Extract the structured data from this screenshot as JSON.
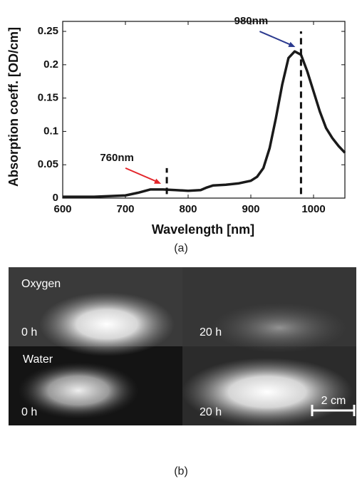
{
  "chart_data": {
    "type": "line",
    "x_label": "Wavelength [nm]",
    "y_label": "Absorption coeff. [OD/cm]",
    "x": [
      600,
      650,
      700,
      720,
      740,
      760,
      780,
      800,
      820,
      830,
      840,
      860,
      880,
      900,
      910,
      920,
      930,
      940,
      950,
      960,
      970,
      980,
      990,
      1000,
      1010,
      1020,
      1030,
      1040,
      1050
    ],
    "series": [
      {
        "color": "#1a1a1a",
        "values": [
          0.002,
          0.002,
          0.004,
          0.008,
          0.013,
          0.013,
          0.012,
          0.011,
          0.012,
          0.016,
          0.019,
          0.02,
          0.022,
          0.026,
          0.032,
          0.045,
          0.075,
          0.12,
          0.17,
          0.21,
          0.22,
          0.215,
          0.19,
          0.16,
          0.13,
          0.105,
          0.09,
          0.078,
          0.068
        ]
      }
    ],
    "xlim": [
      600,
      1050
    ],
    "xticks": [
      600,
      700,
      800,
      900,
      1000
    ],
    "ylim": [
      0,
      0.265
    ],
    "yticks": [
      0,
      0.05,
      0.1,
      0.15,
      0.2,
      0.25
    ],
    "markers": [
      {
        "label": "760nm",
        "x": 766,
        "y": [
          0.006,
          0.045
        ],
        "arrow_color": "#e3262b"
      },
      {
        "label": "980nm",
        "x": 980,
        "y": [
          0.006,
          0.25
        ],
        "arrow_color": "#2b3a8f"
      }
    ],
    "caption": "(a)"
  },
  "images": {
    "caption": "(b)",
    "panels": [
      {
        "row_label": "Oxygen",
        "time": "0 h"
      },
      {
        "time": "20 h"
      },
      {
        "row_label": "Water",
        "time": "0 h"
      },
      {
        "time": "20 h",
        "scale": "2 cm"
      }
    ]
  }
}
